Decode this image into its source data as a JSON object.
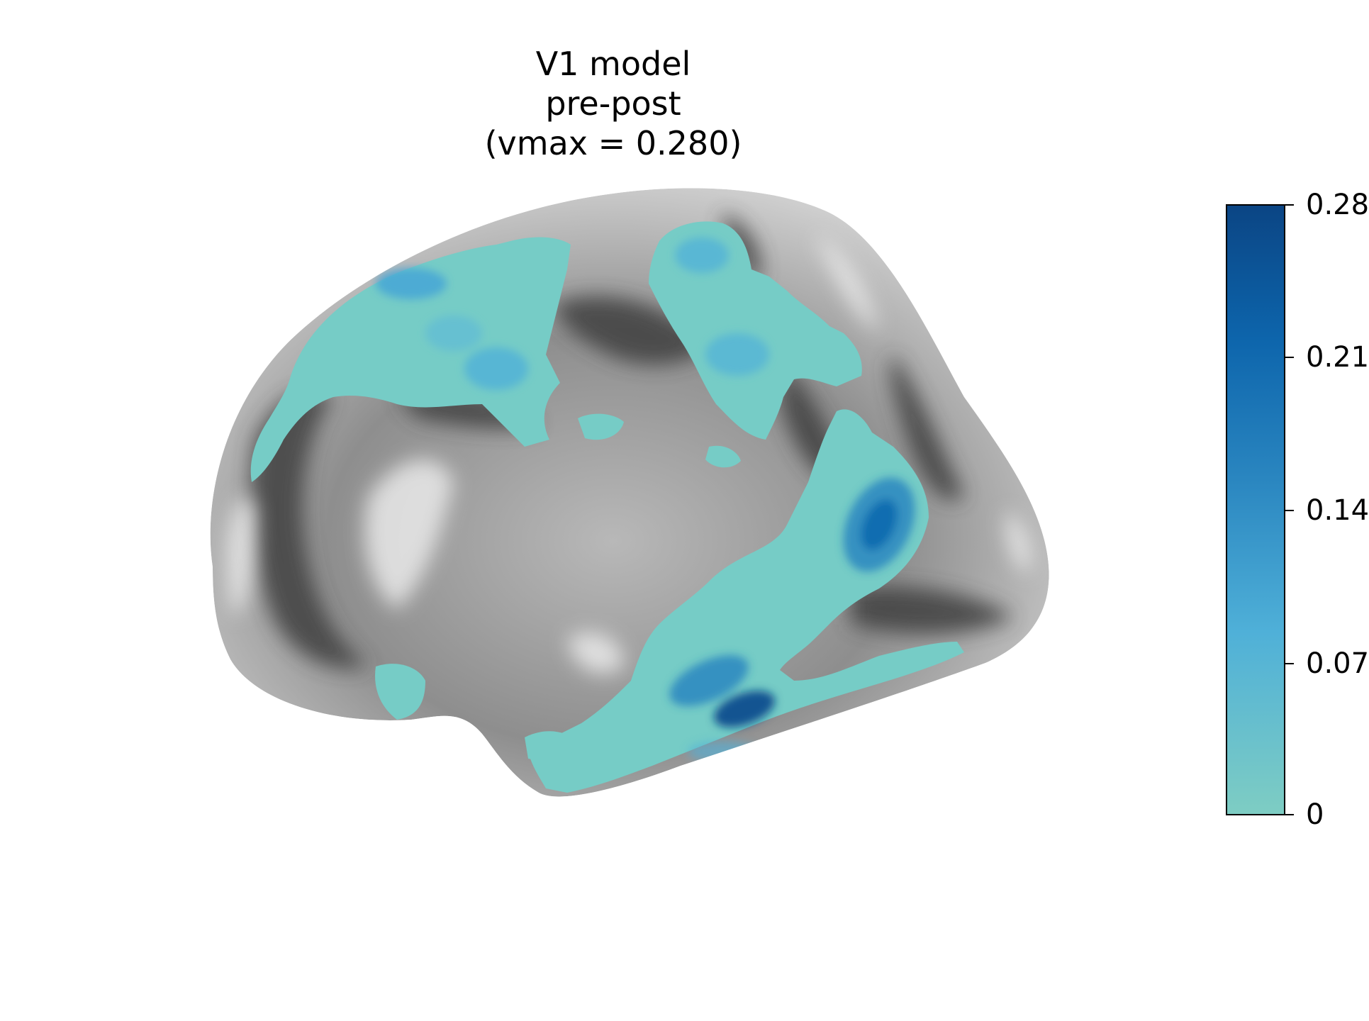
{
  "figure": {
    "title_lines": [
      "V1 model",
      "pre-post",
      "(vmax = 0.280)"
    ],
    "view": "left hemisphere, lateral, inflated surface",
    "background_color": "#ffffff"
  },
  "colorbar": {
    "colormap": "teal-to-dark-blue",
    "vmin": 0,
    "vmax": 0.28,
    "colors": [
      "#7ecdc3",
      "#4fb0d8",
      "#2a86c0",
      "#0d65ac",
      "#0b4584"
    ],
    "ticks": [
      {
        "value": 0.28,
        "label": "0.28"
      },
      {
        "value": 0.21,
        "label": "0.21"
      },
      {
        "value": 0.14,
        "label": "0.14"
      },
      {
        "value": 0.07,
        "label": "0.07"
      },
      {
        "value": 0,
        "label": "0"
      }
    ]
  },
  "surface": {
    "base_colors": {
      "light": "#e6e6e6",
      "mid": "#9a9a9a",
      "dark": "#3c3c3c"
    },
    "overlay_colors": {
      "low": "#76ccc6",
      "mid": "#45a6d6",
      "high": "#0c4e8e"
    }
  }
}
